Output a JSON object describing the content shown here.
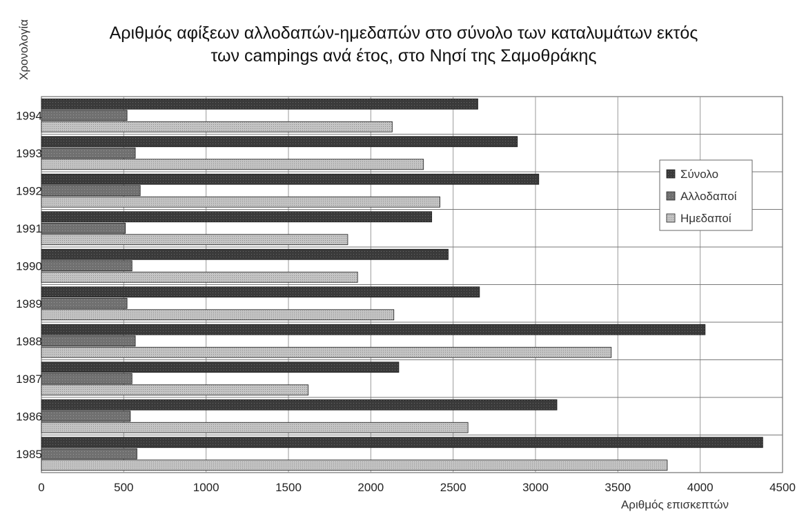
{
  "chart_data": {
    "type": "bar",
    "orientation": "horizontal",
    "title_lines": [
      "Αριθμός αφίξεων αλλοδαπών-ημεδαπών στο σύνολο των καταλυμάτων εκτός",
      "των campings ανά έτος, στο Νησί της Σαμοθράκης"
    ],
    "xlabel": "Αριθμός επισκεπτών",
    "ylabel": "Χρονολογία",
    "categories": [
      "1994",
      "1993",
      "1992",
      "1991",
      "1990",
      "1989",
      "1988",
      "1987",
      "1986",
      "1985"
    ],
    "xlim": [
      0,
      4500
    ],
    "xticks": [
      "0",
      "500",
      "1000",
      "1500",
      "2000",
      "2500",
      "3000",
      "3500",
      "4000",
      "4500"
    ],
    "grid": true,
    "legend_position": "right",
    "series": [
      {
        "name": "Σύνολο",
        "color": "#3a3a3a",
        "values": [
          2650,
          2890,
          3020,
          2370,
          2470,
          2660,
          4030,
          2170,
          3130,
          4380
        ]
      },
      {
        "name": "Αλλοδαποί",
        "color": "#6e6e6e",
        "values": [
          520,
          570,
          600,
          510,
          550,
          520,
          570,
          550,
          540,
          580
        ]
      },
      {
        "name": "Ημεδαποί",
        "color": "#b8b8b8",
        "values": [
          2130,
          2320,
          2420,
          1860,
          1920,
          2140,
          3460,
          1620,
          2590,
          3800
        ]
      }
    ]
  }
}
